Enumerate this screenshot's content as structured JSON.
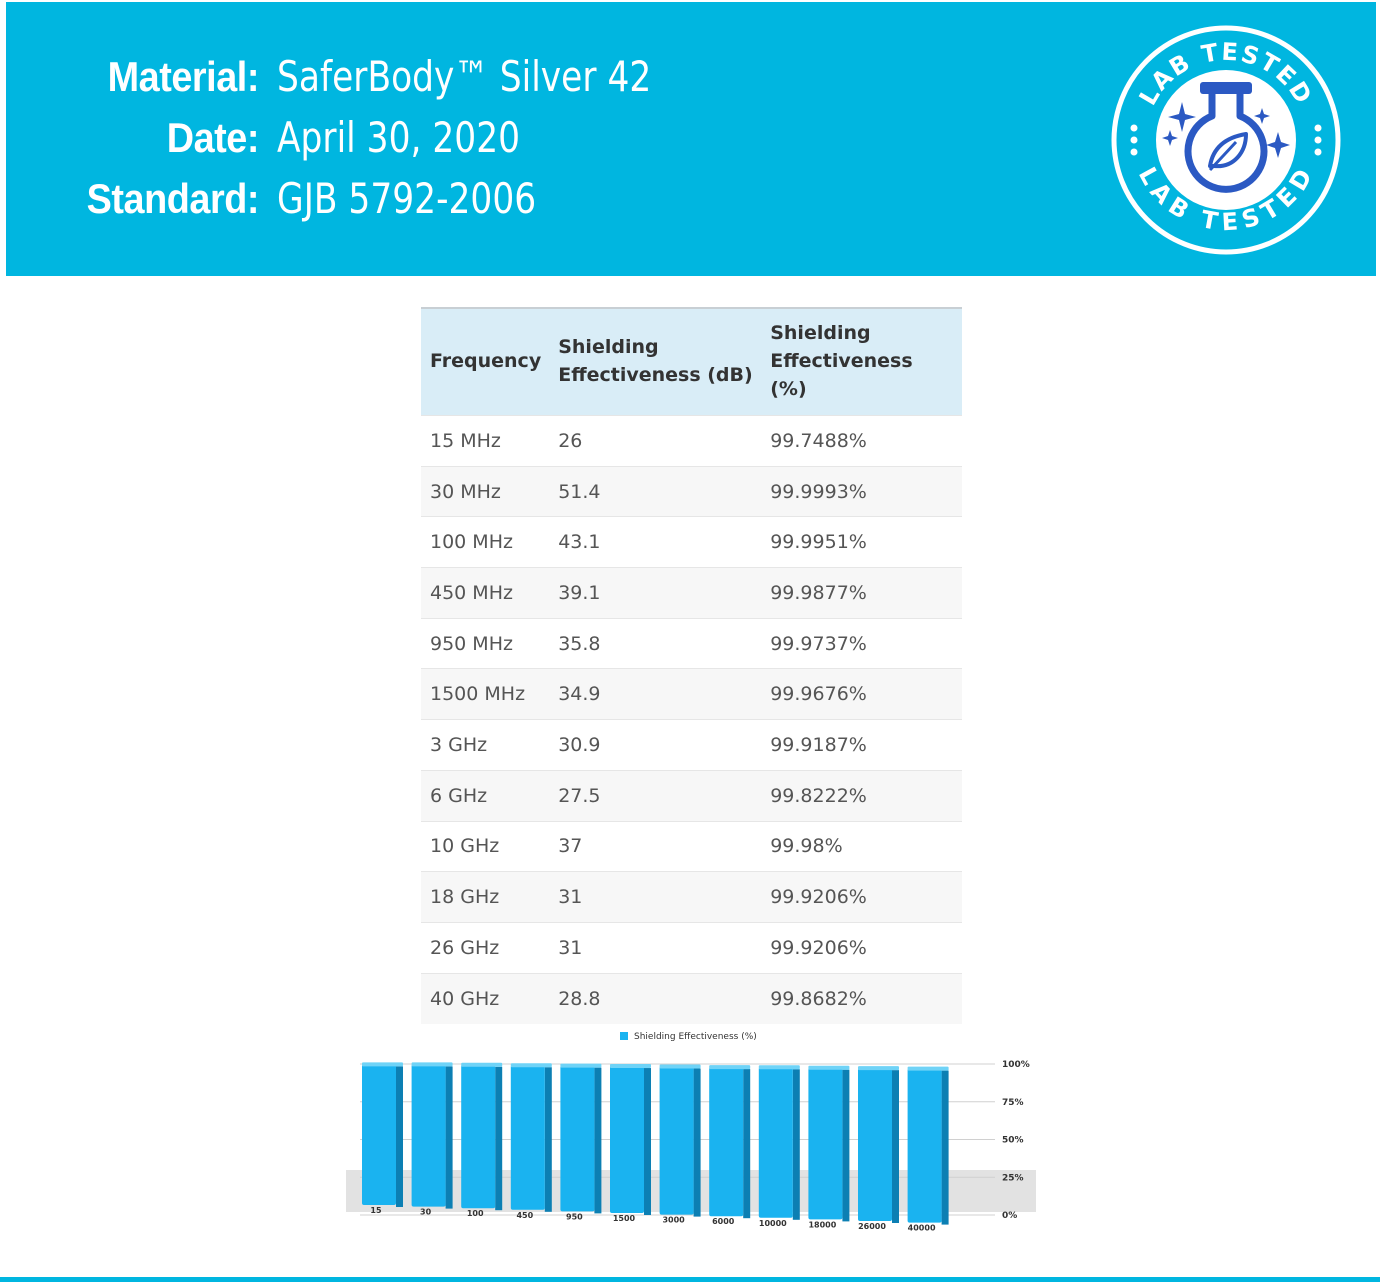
{
  "header": {
    "rows": [
      {
        "label": "Material:",
        "value": "SaferBody™ Silver 42"
      },
      {
        "label": "Date:",
        "value": "April 30, 2020"
      },
      {
        "label": "Standard:",
        "value": "GJB 5792-2006"
      }
    ],
    "badge_top": "LAB TESTED",
    "badge_bottom": "LAB TESTED",
    "badge_icon": "flask-leaf-icon"
  },
  "colors": {
    "brand": "#00b6e0",
    "table_header_bg": "#d9edf7",
    "bar": "#1ab3f0",
    "badge_icon": "#2b59c3"
  },
  "table": {
    "headers": [
      "Frequency",
      "Shielding Effectiveness (dB)",
      "Shielding Effectiveness (%)"
    ],
    "rows": [
      [
        "15 MHz",
        "26",
        "99.7488%"
      ],
      [
        "30 MHz",
        "51.4",
        "99.9993%"
      ],
      [
        "100 MHz",
        "43.1",
        "99.9951%"
      ],
      [
        "450 MHz",
        "39.1",
        "99.9877%"
      ],
      [
        "950 MHz",
        "35.8",
        "99.9737%"
      ],
      [
        "1500 MHz",
        "34.9",
        "99.9676%"
      ],
      [
        "3 GHz",
        "30.9",
        "99.9187%"
      ],
      [
        "6 GHz",
        "27.5",
        "99.8222%"
      ],
      [
        "10 GHz",
        "37",
        "99.98%"
      ],
      [
        "18 GHz",
        "31",
        "99.9206%"
      ],
      [
        "26 GHz",
        "31",
        "99.9206%"
      ],
      [
        "40 GHz",
        "28.8",
        "99.8682%"
      ]
    ]
  },
  "chart_data": {
    "type": "bar",
    "categories": [
      "15",
      "30",
      "100",
      "450",
      "950",
      "1500",
      "3000",
      "6000",
      "10000",
      "18000",
      "26000",
      "40000"
    ],
    "series": [
      {
        "name": "Shielding Effectiveness (%)",
        "values": [
          99.7488,
          99.9993,
          99.9951,
          99.9877,
          99.9737,
          99.9676,
          99.9187,
          99.8222,
          99.98,
          99.9206,
          99.9206,
          99.8682
        ]
      }
    ],
    "yticks": [
      "0%",
      "25%",
      "50%",
      "75%",
      "100%"
    ],
    "ylim": [
      0,
      100
    ],
    "legend": "top",
    "grid": true
  }
}
